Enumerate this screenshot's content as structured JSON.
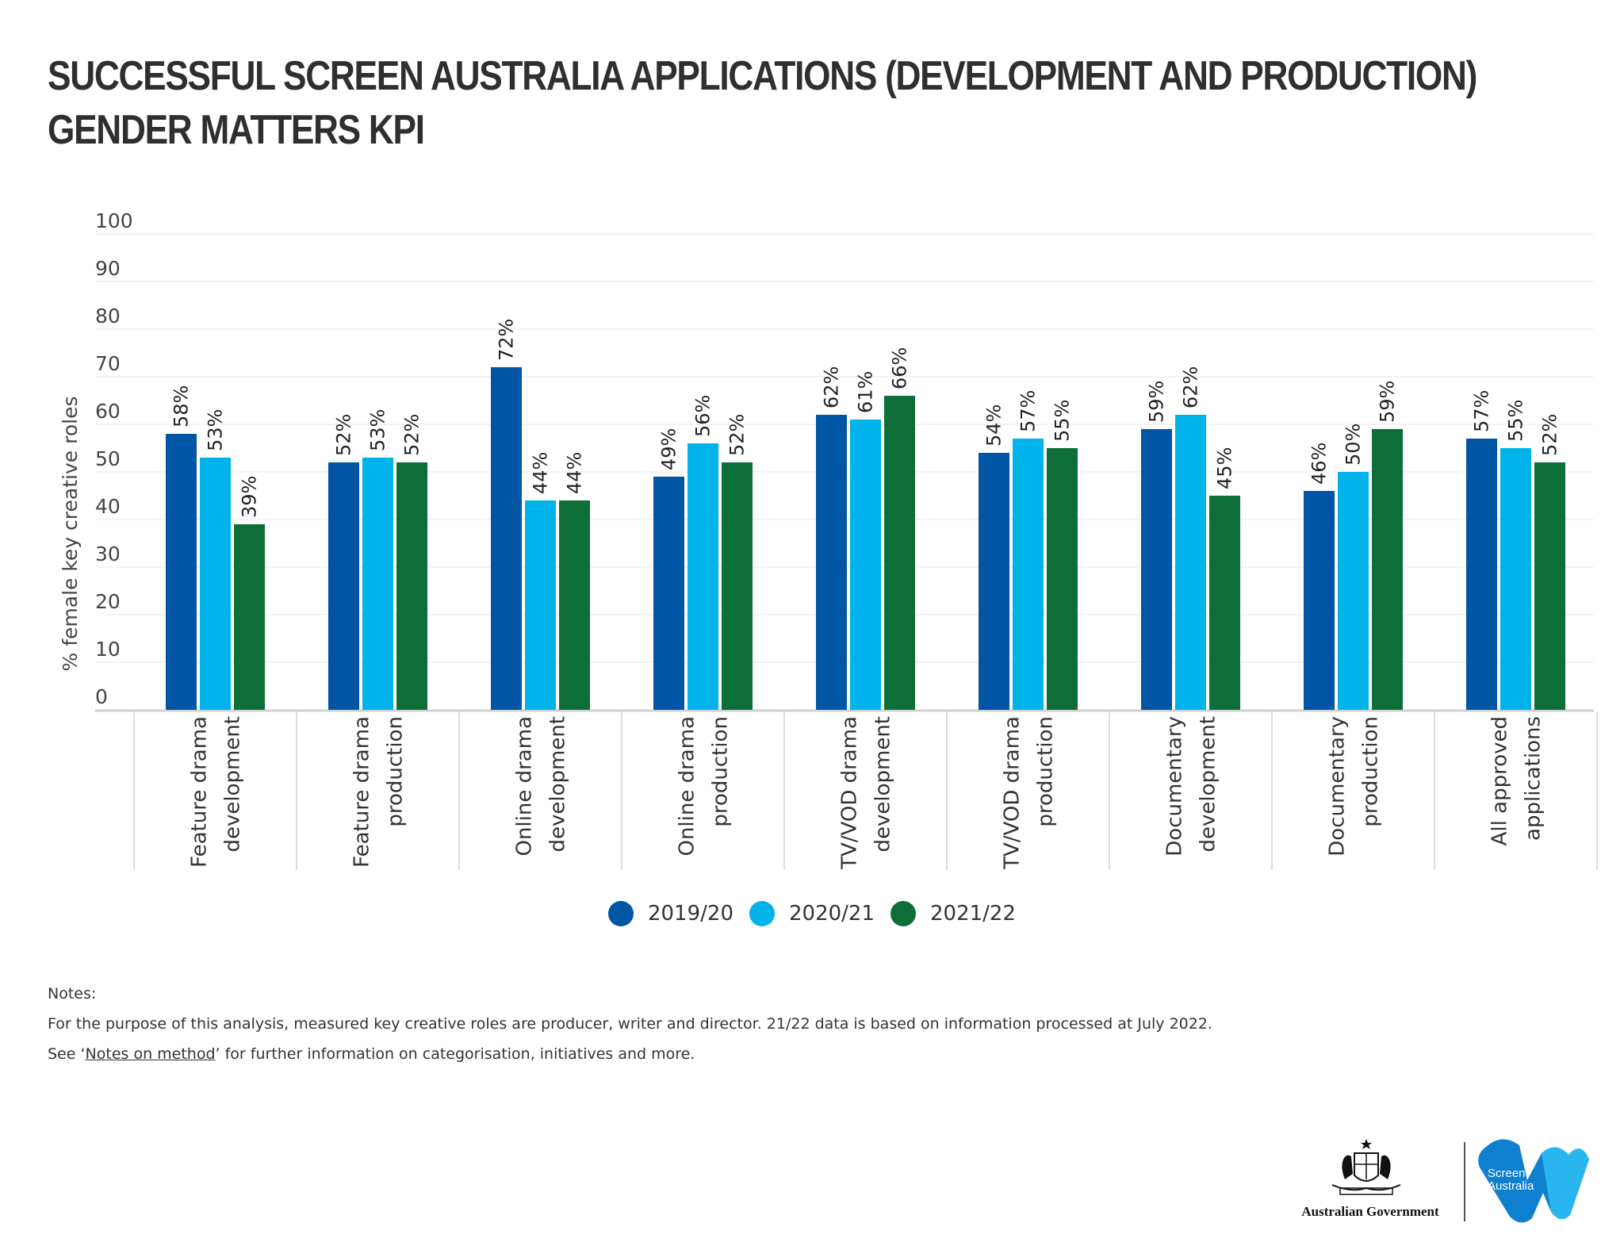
{
  "title_lines": [
    "SUCCESSFUL SCREEN AUSTRALIA APPLICATIONS (DEVELOPMENT AND PRODUCTION)",
    "GENDER MATTERS KPI"
  ],
  "colors": {
    "y2019": "#0055a4",
    "y2020": "#00b3ea",
    "y2021": "#0e6e38",
    "grid": "#eaeaea",
    "axis": "#d0d0d0"
  },
  "chart_data": {
    "type": "bar",
    "title": "SUCCESSFUL SCREEN AUSTRALIA APPLICATIONS (DEVELOPMENT AND PRODUCTION) GENDER MATTERS KPI",
    "xlabel": "",
    "ylabel": "% female key creative roles",
    "ylim": [
      0,
      100
    ],
    "yticks": [
      0,
      10,
      20,
      30,
      40,
      50,
      60,
      70,
      80,
      90,
      100
    ],
    "grid": true,
    "legend_position": "bottom",
    "categories": [
      [
        "Feature drama",
        "development"
      ],
      [
        "Feature drama",
        "production"
      ],
      [
        "Online drama",
        "development"
      ],
      [
        "Online drama",
        "production"
      ],
      [
        "TV/VOD drama",
        "development"
      ],
      [
        "TV/VOD drama",
        "production"
      ],
      [
        "Documentary",
        "development"
      ],
      [
        "Documentary",
        "production"
      ],
      [
        "All approved",
        "applications"
      ]
    ],
    "series": [
      {
        "name": "2019/20",
        "color": "#0055a4",
        "values": [
          58,
          52,
          72,
          49,
          62,
          54,
          59,
          46,
          57
        ]
      },
      {
        "name": "2020/21",
        "color": "#00b3ea",
        "values": [
          53,
          53,
          44,
          56,
          61,
          57,
          62,
          50,
          55
        ]
      },
      {
        "name": "2021/22",
        "color": "#0e6e38",
        "values": [
          39,
          52,
          44,
          52,
          66,
          55,
          45,
          59,
          52
        ]
      }
    ],
    "value_suffix": "%"
  },
  "notes": {
    "heading": "Notes:",
    "line1": "For the purpose of this analysis, measured key creative roles are producer, writer and director. 21/22 data is based on information processed at July 2022.",
    "line2_prefix": "See ‘",
    "line2_link": "Notes on method",
    "line2_suffix": "’ for further information on categorisation, initiatives and more."
  },
  "logos": {
    "government": "Australian Government",
    "screen_australia": [
      "Screen",
      "Australia"
    ]
  }
}
